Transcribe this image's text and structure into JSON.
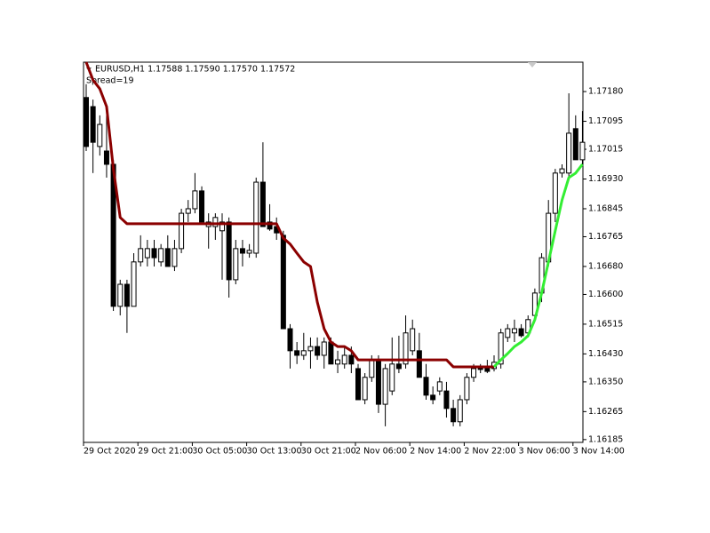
{
  "chart_data": {
    "type": "candlestick",
    "header": "EURUSD,H1  1.17588 1.17590 1.17570 1.17572",
    "subheader": "Spread=19",
    "categories": [
      "29 Oct 2020",
      null,
      null,
      null,
      null,
      null,
      null,
      null,
      "29 Oct 21:00",
      null,
      null,
      null,
      null,
      null,
      null,
      null,
      "30 Oct 05:00",
      null,
      null,
      null,
      null,
      null,
      null,
      null,
      "30 Oct 13:00",
      null,
      null,
      null,
      null,
      null,
      null,
      null,
      "30 Oct 21:00",
      null,
      null,
      null,
      null,
      null,
      null,
      null,
      "2 Nov 06:00",
      null,
      null,
      null,
      null,
      null,
      null,
      null,
      "2 Nov 14:00",
      null,
      null,
      null,
      null,
      null,
      null,
      null,
      "2 Nov 22:00",
      null,
      null,
      null,
      null,
      null,
      null,
      null,
      "3 Nov 06:00",
      null,
      null,
      null,
      null,
      null,
      null,
      null,
      "3 Nov 14:00",
      null
    ],
    "open": [
      1.17163,
      1.17137,
      1.17023,
      1.1701,
      1.16972,
      1.16566,
      1.16629,
      1.16566,
      1.16693,
      1.16705,
      1.16731,
      1.16693,
      1.16731,
      1.1668,
      1.16731,
      1.16832,
      1.16845,
      1.16896,
      1.16794,
      1.16794,
      1.16782,
      1.16807,
      1.16642,
      1.16731,
      1.16718,
      1.16718,
      1.16921,
      1.16807,
      1.16794,
      1.16769,
      1.16502,
      1.16439,
      1.16426,
      1.16439,
      1.16451,
      1.16426,
      1.16464,
      1.16401,
      1.16401,
      1.16426,
      1.16388,
      1.16299,
      1.16363,
      1.16413,
      1.16286,
      1.16324,
      1.16401,
      1.16401,
      1.16439,
      1.16439,
      1.16363,
      1.16312,
      1.16324,
      1.16324,
      1.16274,
      1.16236,
      1.16299,
      1.16363,
      1.16388,
      1.16388,
      1.16388,
      1.16401,
      1.16477,
      1.1649,
      1.16502,
      1.1649,
      1.1654,
      1.16604,
      1.16693,
      1.16832,
      1.16947,
      1.16947,
      1.17074,
      1.16985
    ],
    "high": [
      1.17201,
      1.17157,
      1.17112,
      1.17112,
      1.16985,
      1.16642,
      1.16642,
      1.16718,
      1.16769,
      1.16756,
      1.16756,
      1.16744,
      1.16769,
      1.16756,
      1.16845,
      1.1687,
      1.16947,
      1.16909,
      1.16832,
      1.16832,
      1.16832,
      1.1682,
      1.16756,
      1.16756,
      1.16744,
      1.16934,
      1.17035,
      1.16858,
      1.1682,
      1.16782,
      1.16515,
      1.16464,
      1.1649,
      1.16477,
      1.16477,
      1.16477,
      1.16477,
      1.16439,
      1.16451,
      1.16451,
      1.16401,
      1.16375,
      1.16426,
      1.16426,
      1.16401,
      1.16477,
      1.16482,
      1.1654,
      1.16528,
      1.1649,
      1.16401,
      1.16337,
      1.16363,
      1.1635,
      1.16299,
      1.16312,
      1.16375,
      1.16401,
      1.16401,
      1.16413,
      1.16426,
      1.16502,
      1.16515,
      1.16528,
      1.16515,
      1.1654,
      1.16617,
      1.16718,
      1.1687,
      1.16959,
      1.16972,
      1.17175,
      1.17112,
      1.17124
    ],
    "low": [
      1.1701,
      1.16947,
      1.16997,
      1.16934,
      1.16553,
      1.1654,
      1.1649,
      1.16566,
      1.1668,
      1.1668,
      1.1668,
      1.1668,
      1.1668,
      1.16667,
      1.16718,
      1.16807,
      1.16832,
      1.16807,
      1.16731,
      1.16756,
      1.16642,
      1.16591,
      1.16629,
      1.1668,
      1.16705,
      1.16705,
      1.16794,
      1.16782,
      1.16756,
      1.16502,
      1.16388,
      1.16401,
      1.16413,
      1.16388,
      1.16413,
      1.16388,
      1.16401,
      1.16375,
      1.16388,
      1.16375,
      1.16299,
      1.16286,
      1.1635,
      1.16261,
      1.16223,
      1.16312,
      1.16375,
      1.16388,
      1.16426,
      1.16363,
      1.16299,
      1.16286,
      1.16312,
      1.16248,
      1.16223,
      1.16223,
      1.16286,
      1.1635,
      1.16375,
      1.16375,
      1.1638,
      1.16388,
      1.16464,
      1.16464,
      1.16477,
      1.16477,
      1.16528,
      1.16578,
      1.1668,
      1.16807,
      1.16934,
      1.16934,
      1.16985,
      1.16972
    ],
    "close": [
      1.17023,
      1.17035,
      1.17086,
      1.16972,
      1.16566,
      1.16629,
      1.16566,
      1.16693,
      1.16731,
      1.16731,
      1.16705,
      1.16731,
      1.1668,
      1.16731,
      1.16832,
      1.16845,
      1.16896,
      1.16807,
      1.16807,
      1.1682,
      1.16807,
      1.16642,
      1.16731,
      1.16718,
      1.16726,
      1.16921,
      1.16794,
      1.16787,
      1.16776,
      1.16502,
      1.16439,
      1.16426,
      1.16439,
      1.16451,
      1.16426,
      1.16464,
      1.16401,
      1.16413,
      1.16426,
      1.16401,
      1.16299,
      1.16363,
      1.16413,
      1.16286,
      1.16388,
      1.16401,
      1.16388,
      1.1649,
      1.16502,
      1.16363,
      1.16312,
      1.16299,
      1.1635,
      1.16274,
      1.16236,
      1.16299,
      1.16363,
      1.16388,
      1.16388,
      1.1638,
      1.16406,
      1.1649,
      1.16502,
      1.16502,
      1.16482,
      1.16528,
      1.16604,
      1.16705,
      1.16832,
      1.16947,
      1.16959,
      1.17061,
      1.16985,
      1.17035
    ],
    "up_color": "#ffffff",
    "down_color": "#000000",
    "wick_color": "#000000",
    "series": [
      {
        "color": "#8b0000",
        "values": [
          1.17264,
          1.17213,
          1.17188,
          1.17137,
          1.16959,
          1.1682,
          1.16802,
          1.16802,
          1.16802,
          1.16802,
          1.16802,
          1.16802,
          1.16802,
          1.16802,
          1.16802,
          1.16802,
          1.16802,
          1.16802,
          1.16802,
          1.16802,
          1.16802,
          1.16802,
          1.16802,
          1.16802,
          1.16802,
          1.16802,
          1.16802,
          1.16802,
          1.16802,
          1.16761,
          1.16744,
          1.16718,
          1.16693,
          1.1668,
          1.16578,
          1.16502,
          1.16464,
          1.16451,
          1.16451,
          1.16439,
          1.16413,
          1.16413,
          1.16413,
          1.16413,
          1.16413,
          1.16413,
          1.16413,
          1.16413,
          1.16413,
          1.16413,
          1.16413,
          1.16413,
          1.16413,
          1.16413,
          1.16393,
          1.16393,
          1.16393,
          1.16393,
          1.16393,
          1.16393,
          1.16393,
          null,
          null,
          null,
          null,
          null,
          null,
          null,
          null,
          null,
          null,
          null,
          null,
          null
        ]
      },
      {
        "color": "#33ee33",
        "values": [
          null,
          null,
          null,
          null,
          null,
          null,
          null,
          null,
          null,
          null,
          null,
          null,
          null,
          null,
          null,
          null,
          null,
          null,
          null,
          null,
          null,
          null,
          null,
          null,
          null,
          null,
          null,
          null,
          null,
          null,
          null,
          null,
          null,
          null,
          null,
          null,
          null,
          null,
          null,
          null,
          null,
          null,
          null,
          null,
          null,
          null,
          null,
          null,
          null,
          null,
          null,
          null,
          null,
          null,
          null,
          null,
          null,
          null,
          null,
          null,
          1.16393,
          1.16413,
          1.16431,
          1.16451,
          1.16464,
          1.16482,
          1.16528,
          1.16604,
          1.16693,
          1.16782,
          1.1687,
          1.16934,
          1.16947,
          1.16972
        ]
      }
    ],
    "ylim": [
      1.16177,
      1.17264
    ],
    "yticks": [
      {
        "value": 1.1718,
        "label": "1.17180"
      },
      1.17095,
      1.17015,
      {
        "value": 1.1693,
        "label": "1.16930"
      },
      1.16845,
      1.16765,
      {
        "value": 1.1668,
        "label": "1.16680"
      },
      {
        "value": 1.166,
        "label": "1.16600"
      },
      1.16515,
      {
        "value": 1.1643,
        "label": "1.16430"
      },
      {
        "value": 1.1635,
        "label": "1.16350"
      },
      1.16265,
      1.16185
    ]
  }
}
